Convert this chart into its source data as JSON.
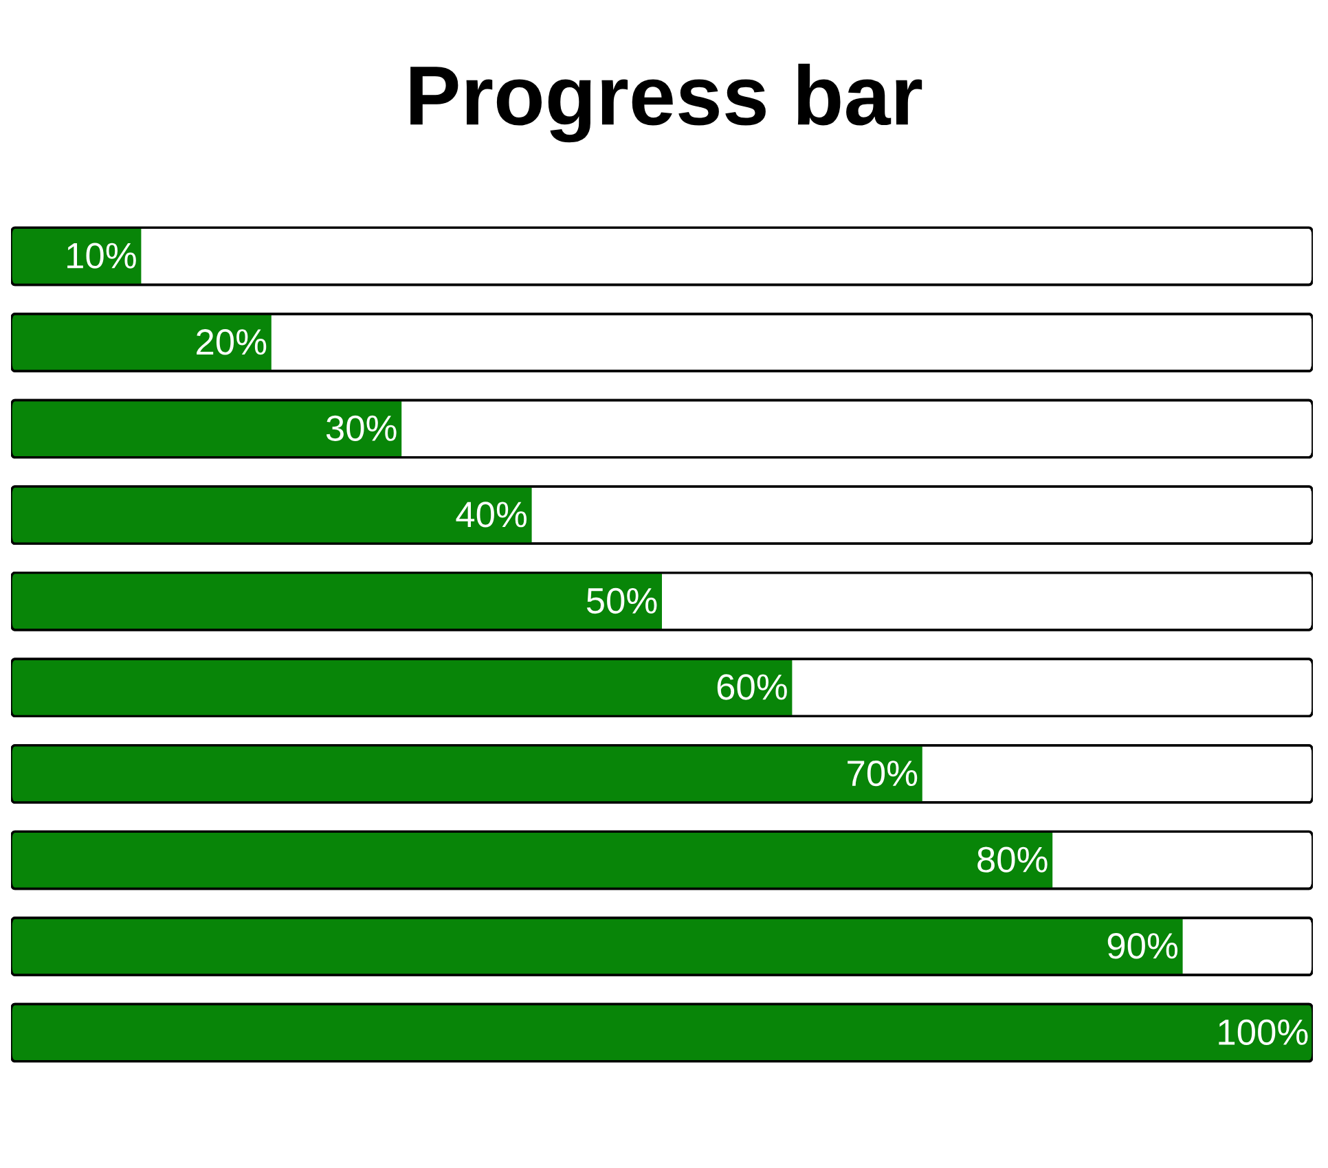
{
  "chart_data": {
    "type": "bar",
    "orientation": "horizontal",
    "title": "Progress bar",
    "categories": [
      null,
      null,
      null,
      null,
      null,
      null,
      null,
      null,
      null,
      null
    ],
    "values": [
      10,
      20,
      30,
      40,
      50,
      60,
      70,
      80,
      90,
      100
    ],
    "value_labels": [
      "10%",
      "20%",
      "30%",
      "40%",
      "50%",
      "60%",
      "70%",
      "80%",
      "90%",
      "100%"
    ],
    "color": "#088508",
    "xlim": [
      0,
      100
    ],
    "tick_labels": false
  }
}
